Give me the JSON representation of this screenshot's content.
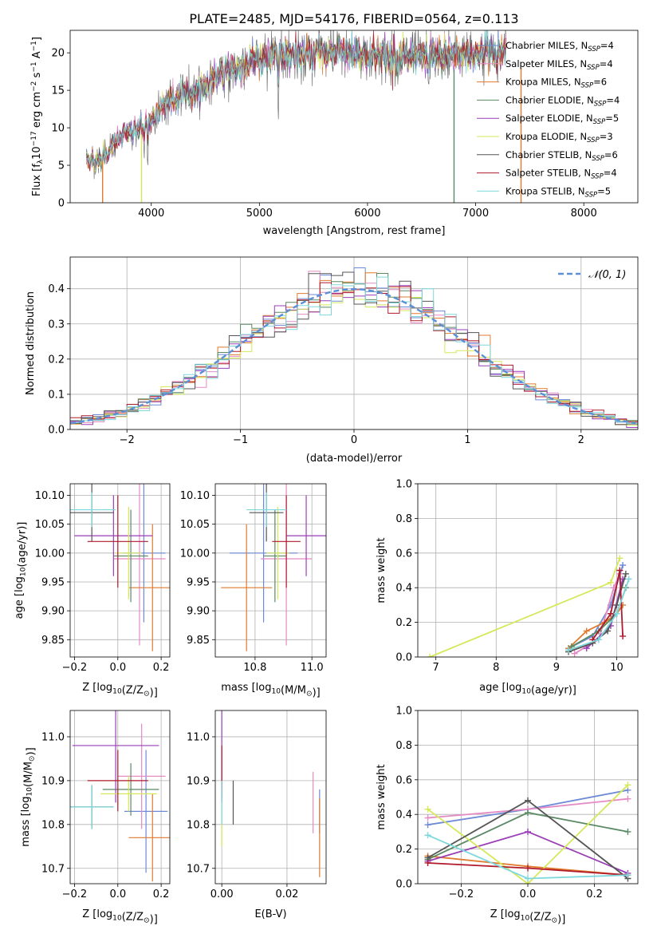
{
  "figure": {
    "title": "PLATE=2485, MJD=54176, FIBERID=0564, z=0.113"
  },
  "colors": {
    "Chabrier MILES": "#6d8ad6",
    "Salpeter MILES": "#e58ac5",
    "Kroupa MILES": "#e07a2f",
    "Chabrier ELODIE": "#5a8a63",
    "Salpeter ELODIE": "#9a3fb8",
    "Kroupa ELODIE": "#d6e85a",
    "Chabrier STELIB": "#555555",
    "Salpeter STELIB": "#b01a2b",
    "Kroupa STELIB": "#7dd8dd",
    "gaussian": "#5b8fd6"
  },
  "chart_data": [
    {
      "id": "spectrum",
      "type": "line",
      "title": "",
      "xlabel": "wavelength [Angstrom, rest frame]",
      "ylabel_parts": [
        "Flux [f",
        "λ",
        "10",
        "−17",
        " erg cm",
        "−2",
        " s",
        "−1",
        " A",
        "−1",
        "]"
      ],
      "xlim": [
        3250,
        8500
      ],
      "ylim": [
        0,
        23
      ],
      "xticks": [
        4000,
        5000,
        6000,
        7000,
        8000
      ],
      "yticks": [
        0,
        5,
        10,
        15,
        20
      ],
      "grid": false,
      "legend_position": "right",
      "continuum": {
        "x": [
          3400,
          3500,
          3600,
          3700,
          3800,
          3900,
          4000,
          4100,
          4300,
          4500,
          4700,
          4900,
          5100,
          5400,
          5800,
          6200,
          6600,
          7000,
          7200
        ],
        "y": [
          6.0,
          5.5,
          6.8,
          8.5,
          9.5,
          10.0,
          11.0,
          13.0,
          14.5,
          15.5,
          17.5,
          18.5,
          19.5,
          20.0,
          20.0,
          19.5,
          19.5,
          20.0,
          20.0
        ]
      },
      "legend": [
        {
          "label": "Chabrier MILES, N",
          "sub": "SSP",
          "value": "=4"
        },
        {
          "label": "Salpeter MILES, N",
          "sub": "SSP",
          "value": "=4"
        },
        {
          "label": "Kroupa MILES, N",
          "sub": "SSP",
          "value": "=6"
        },
        {
          "label": "Chabrier ELODIE, N",
          "sub": "SSP",
          "value": "=4"
        },
        {
          "label": "Salpeter ELODIE, N",
          "sub": "SSP",
          "value": "=5"
        },
        {
          "label": "Kroupa ELODIE, N",
          "sub": "SSP",
          "value": "=3"
        },
        {
          "label": "Chabrier STELIB, N",
          "sub": "SSP",
          "value": "=6"
        },
        {
          "label": "Salpeter STELIB, N",
          "sub": "SSP",
          "value": "=4"
        },
        {
          "label": "Kroupa STELIB, N",
          "sub": "SSP",
          "value": "=5"
        }
      ]
    },
    {
      "id": "residuals",
      "type": "histogram",
      "title": "",
      "xlabel": "(data-model)/error",
      "ylabel": "Normed distribution",
      "xlim": [
        -2.5,
        2.5
      ],
      "ylim": [
        0,
        0.49
      ],
      "xticks": [
        -2,
        -1,
        0,
        1,
        2
      ],
      "yticks": [
        0.0,
        0.1,
        0.2,
        0.3,
        0.4
      ],
      "grid": true,
      "bin_width": 0.1,
      "legend": {
        "label": "𝒩(0, 1)",
        "position": "top-right"
      }
    },
    {
      "id": "age_vs_Z",
      "type": "errorbar",
      "xlabel_parts": [
        "Z [log",
        "10",
        "(Z/Z",
        "⊙",
        ")]"
      ],
      "ylabel_parts": [
        "age  [log",
        "10",
        "(age/yr)]"
      ],
      "xlim": [
        -0.22,
        0.24
      ],
      "ylim": [
        9.82,
        10.12
      ],
      "xticks": [
        -0.2,
        0.0,
        0.2
      ],
      "yticks": [
        9.85,
        9.9,
        9.95,
        10.0,
        10.05,
        10.1
      ],
      "grid": true,
      "points": [
        {
          "series": "Chabrier MILES",
          "x": 0.12,
          "y": 10.0,
          "xerr": 0.1,
          "yerr": 0.12
        },
        {
          "series": "Salpeter MILES",
          "x": 0.1,
          "y": 9.99,
          "xerr": 0.12,
          "yerr": 0.15
        },
        {
          "series": "Kroupa MILES",
          "x": 0.16,
          "y": 9.94,
          "xerr": 0.11,
          "yerr": 0.11
        },
        {
          "series": "Chabrier ELODIE",
          "x": 0.06,
          "y": 9.995,
          "xerr": 0.08,
          "yerr": 0.08
        },
        {
          "series": "Salpeter ELODIE",
          "x": -0.02,
          "y": 10.03,
          "xerr": 0.18,
          "yerr": 0.07
        },
        {
          "series": "Kroupa ELODIE",
          "x": 0.05,
          "y": 10.0,
          "xerr": 0.06,
          "yerr": 0.08
        },
        {
          "series": "Chabrier STELIB",
          "x": -0.12,
          "y": 10.07,
          "xerr": 0.1,
          "yerr": 0.05
        },
        {
          "series": "Salpeter STELIB",
          "x": 0.0,
          "y": 10.02,
          "xerr": 0.14,
          "yerr": 0.08
        },
        {
          "series": "Kroupa STELIB",
          "x": -0.12,
          "y": 10.075,
          "xerr": 0.11,
          "yerr": 0.03
        }
      ]
    },
    {
      "id": "age_vs_mass",
      "type": "errorbar",
      "xlabel_parts": [
        "mass [log",
        "10",
        "(M/M",
        "⊙",
        ")]"
      ],
      "ylabel": "",
      "xlim": [
        10.66,
        11.05
      ],
      "ylim": [
        9.82,
        10.12
      ],
      "xticks": [
        10.8,
        11.0
      ],
      "yticks": [
        9.85,
        9.9,
        9.95,
        10.0,
        10.05,
        10.1
      ],
      "grid": true,
      "points": [
        {
          "series": "Chabrier MILES",
          "x": 10.83,
          "y": 10.0,
          "xerr": 0.12,
          "yerr": 0.12
        },
        {
          "series": "Salpeter MILES",
          "x": 10.91,
          "y": 9.99,
          "xerr": 0.09,
          "yerr": 0.15
        },
        {
          "series": "Kroupa MILES",
          "x": 10.77,
          "y": 9.94,
          "xerr": 0.09,
          "yerr": 0.11
        },
        {
          "series": "Chabrier ELODIE",
          "x": 10.87,
          "y": 9.995,
          "xerr": 0.04,
          "yerr": 0.08
        },
        {
          "series": "Salpeter ELODIE",
          "x": 10.98,
          "y": 10.03,
          "xerr": 0.07,
          "yerr": 0.07
        },
        {
          "series": "Kroupa ELODIE",
          "x": 10.88,
          "y": 10.0,
          "xerr": 0.04,
          "yerr": 0.08
        },
        {
          "series": "Chabrier STELIB",
          "x": 10.84,
          "y": 10.07,
          "xerr": 0.06,
          "yerr": 0.05
        },
        {
          "series": "Salpeter STELIB",
          "x": 10.91,
          "y": 10.02,
          "xerr": 0.05,
          "yerr": 0.08
        },
        {
          "series": "Kroupa STELIB",
          "x": 10.84,
          "y": 10.075,
          "xerr": 0.07,
          "yerr": 0.03
        }
      ]
    },
    {
      "id": "massweight_vs_age",
      "type": "line",
      "xlabel_parts": [
        "age  [log",
        "10",
        "(age/yr)]"
      ],
      "ylabel": "mass weight",
      "xlim": [
        6.7,
        10.35
      ],
      "ylim": [
        0,
        1.0
      ],
      "xticks": [
        7,
        8,
        9,
        10
      ],
      "yticks": [
        0.0,
        0.2,
        0.4,
        0.6,
        0.8,
        1.0
      ],
      "grid": true,
      "series": [
        {
          "name": "Chabrier MILES",
          "x": [
            9.2,
            9.6,
            9.9,
            10.1
          ],
          "y": [
            0.05,
            0.12,
            0.3,
            0.53
          ]
        },
        {
          "name": "Salpeter MILES",
          "x": [
            9.3,
            9.7,
            9.95,
            10.05
          ],
          "y": [
            0.02,
            0.1,
            0.4,
            0.48
          ]
        },
        {
          "name": "Kroupa MILES",
          "x": [
            9.2,
            9.5,
            9.8,
            10.0,
            10.1
          ],
          "y": [
            0.05,
            0.15,
            0.2,
            0.25,
            0.3
          ]
        },
        {
          "name": "Chabrier ELODIE",
          "x": [
            9.25,
            9.7,
            10.0,
            10.15
          ],
          "y": [
            0.06,
            0.15,
            0.25,
            0.4
          ]
        },
        {
          "name": "Salpeter ELODIE",
          "x": [
            9.5,
            9.9,
            10.1
          ],
          "y": [
            0.05,
            0.18,
            0.45
          ]
        },
        {
          "name": "Kroupa ELODIE",
          "x": [
            6.9,
            9.9,
            10.05
          ],
          "y": [
            0.0,
            0.43,
            0.57
          ]
        },
        {
          "name": "Chabrier STELIB",
          "x": [
            9.2,
            9.6,
            9.85,
            10.0,
            10.15
          ],
          "y": [
            0.03,
            0.08,
            0.15,
            0.3,
            0.48
          ]
        },
        {
          "name": "Salpeter STELIB",
          "x": [
            9.6,
            9.9,
            10.05,
            10.1
          ],
          "y": [
            0.1,
            0.25,
            0.5,
            0.12
          ]
        },
        {
          "name": "Kroupa STELIB",
          "x": [
            9.2,
            9.7,
            10.0,
            10.2
          ],
          "y": [
            0.04,
            0.1,
            0.25,
            0.45
          ]
        }
      ]
    },
    {
      "id": "mass_vs_Z",
      "type": "errorbar",
      "xlabel_parts": [
        "Z [log",
        "10",
        "(Z/Z",
        "⊙",
        ")]"
      ],
      "ylabel_parts": [
        "mass [log",
        "10",
        "(M/M",
        "⊙",
        ")]"
      ],
      "xlim": [
        -0.22,
        0.24
      ],
      "ylim": [
        10.665,
        11.06
      ],
      "xticks": [
        -0.2,
        0.0,
        0.2
      ],
      "yticks": [
        10.7,
        10.8,
        10.9,
        11.0
      ],
      "grid": true,
      "points": [
        {
          "series": "Chabrier MILES",
          "x": 0.13,
          "y": 10.83,
          "xerr": 0.1,
          "yerr": 0.14
        },
        {
          "series": "Salpeter MILES",
          "x": 0.11,
          "y": 10.91,
          "xerr": 0.11,
          "yerr": 0.12
        },
        {
          "series": "Kroupa MILES",
          "x": 0.16,
          "y": 10.77,
          "xerr": 0.11,
          "yerr": 0.1
        },
        {
          "series": "Chabrier ELODIE",
          "x": 0.06,
          "y": 10.88,
          "xerr": 0.13,
          "yerr": 0.06
        },
        {
          "series": "Salpeter ELODIE",
          "x": -0.01,
          "y": 10.98,
          "xerr": 0.2,
          "yerr": 0.13
        },
        {
          "series": "Kroupa ELODIE",
          "x": 0.05,
          "y": 10.87,
          "xerr": 0.13,
          "yerr": 0.04
        },
        {
          "series": "Chabrier STELIB",
          "x": -0.12,
          "y": 10.84,
          "xerr": 0.1,
          "yerr": 0.05
        },
        {
          "series": "Salpeter STELIB",
          "x": 0.0,
          "y": 10.9,
          "xerr": 0.14,
          "yerr": 0.07
        },
        {
          "series": "Kroupa STELIB",
          "x": -0.12,
          "y": 10.84,
          "xerr": 0.1,
          "yerr": 0.05
        }
      ]
    },
    {
      "id": "mass_vs_EBV",
      "type": "errorbar",
      "xlabel": "E(B-V)",
      "ylabel": "",
      "xlim": [
        -0.002,
        0.032
      ],
      "ylim": [
        10.665,
        11.06
      ],
      "xticks": [
        0.0,
        0.02
      ],
      "yticks": [
        10.7,
        10.8,
        10.9,
        11.0
      ],
      "grid": true,
      "points": [
        {
          "series": "Chabrier MILES",
          "x": 0.03,
          "y": 10.83,
          "xerr": 0.0,
          "yerr": 0.05
        },
        {
          "series": "Salpeter MILES",
          "x": 0.028,
          "y": 10.85,
          "xerr": 0.0,
          "yerr": 0.07
        },
        {
          "series": "Kroupa MILES",
          "x": 0.03,
          "y": 10.77,
          "xerr": 0.0,
          "yerr": 0.09
        },
        {
          "series": "Chabrier ELODIE",
          "x": 0.0,
          "y": 10.88,
          "xerr": 0.0,
          "yerr": 0.02
        },
        {
          "series": "Salpeter ELODIE",
          "x": 0.0,
          "y": 10.98,
          "xerr": 0.0,
          "yerr": 0.13
        },
        {
          "series": "Kroupa ELODIE",
          "x": 0.0,
          "y": 10.8,
          "xerr": 0.0,
          "yerr": 0.05
        },
        {
          "series": "Chabrier STELIB",
          "x": 0.0035,
          "y": 10.85,
          "xerr": 0.0,
          "yerr": 0.05
        },
        {
          "series": "Salpeter STELIB",
          "x": 0.0,
          "y": 10.93,
          "xerr": 0.0,
          "yerr": 0.05
        },
        {
          "series": "Kroupa STELIB",
          "x": 0.0,
          "y": 10.85,
          "xerr": 0.0,
          "yerr": 0.05
        }
      ]
    },
    {
      "id": "massweight_vs_Z",
      "type": "line",
      "xlabel_parts": [
        "Z [log",
        "10",
        "(Z/Z",
        "⊙",
        ")]"
      ],
      "ylabel": "mass weight",
      "xlim": [
        -0.33,
        0.33
      ],
      "ylim": [
        0,
        1.0
      ],
      "xticks": [
        -0.2,
        0.0,
        0.2
      ],
      "yticks": [
        0.0,
        0.2,
        0.4,
        0.6,
        0.8,
        1.0
      ],
      "grid": true,
      "series": [
        {
          "name": "Chabrier MILES",
          "x": [
            -0.3,
            0.0,
            0.3
          ],
          "y": [
            0.34,
            0.43,
            0.54
          ]
        },
        {
          "name": "Salpeter MILES",
          "x": [
            -0.3,
            0.0,
            0.3
          ],
          "y": [
            0.38,
            0.43,
            0.49
          ]
        },
        {
          "name": "Kroupa MILES",
          "x": [
            -0.3,
            0.0,
            0.3
          ],
          "y": [
            0.16,
            0.1,
            0.05
          ]
        },
        {
          "name": "Chabrier ELODIE",
          "x": [
            -0.3,
            0.0,
            0.3
          ],
          "y": [
            0.14,
            0.41,
            0.3
          ]
        },
        {
          "name": "Salpeter ELODIE",
          "x": [
            -0.3,
            0.0,
            0.3
          ],
          "y": [
            0.13,
            0.3,
            0.06
          ]
        },
        {
          "name": "Kroupa ELODIE",
          "x": [
            -0.3,
            0.0,
            0.3
          ],
          "y": [
            0.43,
            0.0,
            0.57
          ]
        },
        {
          "name": "Chabrier STELIB",
          "x": [
            -0.3,
            0.0,
            0.3
          ],
          "y": [
            0.15,
            0.48,
            0.03
          ]
        },
        {
          "name": "Salpeter STELIB",
          "x": [
            -0.3,
            0.0,
            0.3
          ],
          "y": [
            0.12,
            0.09,
            0.05
          ]
        },
        {
          "name": "Kroupa STELIB",
          "x": [
            -0.3,
            0.0,
            0.3
          ],
          "y": [
            0.28,
            0.03,
            0.05
          ]
        }
      ]
    }
  ]
}
